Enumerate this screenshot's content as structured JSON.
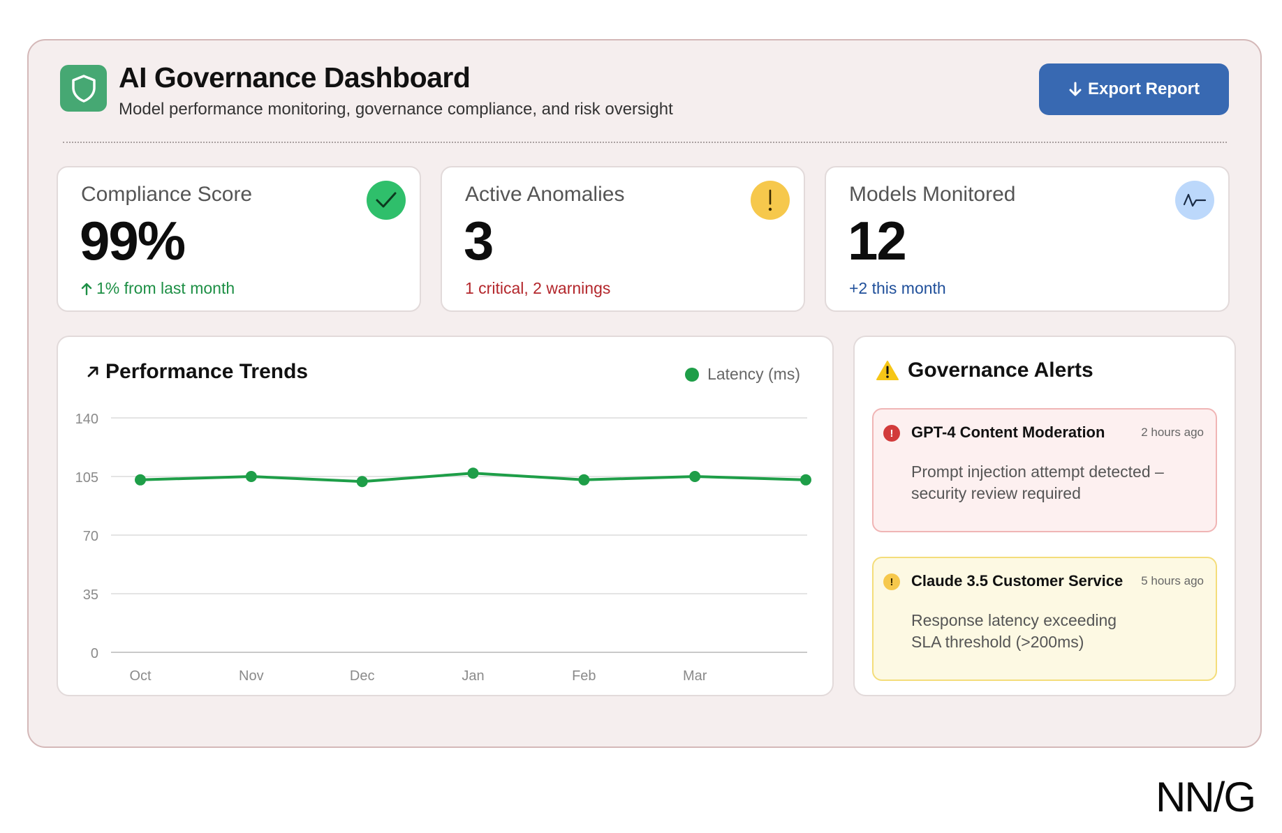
{
  "header": {
    "title": "AI Governance Dashboard",
    "subtitle": "Model performance monitoring, governance compliance, and risk oversight",
    "logo_icon": "shield-icon",
    "export_label": "Export Report",
    "export_icon": "arrow-down-icon"
  },
  "stats": [
    {
      "label": "Compliance Score",
      "value": "99%",
      "note": "1% from last month",
      "note_icon": "arrow-up-icon",
      "note_color": "#1d8f45",
      "icon": "check-icon",
      "icon_bg": "#2fbf6b"
    },
    {
      "label": "Active Anomalies",
      "value": "3",
      "note": "1 critical, 2 warnings",
      "note_color": "#b3262b",
      "icon": "exclamation-icon",
      "icon_bg": "#f6c84c"
    },
    {
      "label": "Models Monitored",
      "value": "12",
      "note": "+2 this month",
      "note_color": "#1f4f9a",
      "icon": "activity-icon",
      "icon_bg": "#bcd8fb"
    }
  ],
  "performance": {
    "title": "Performance Trends",
    "title_icon": "arrow-up-right-icon",
    "legend_label": "Latency (ms)"
  },
  "chart_data": {
    "type": "line",
    "title": "Performance Trends",
    "categories": [
      "Oct",
      "Nov",
      "Dec",
      "Jan",
      "Feb",
      "Mar",
      ""
    ],
    "series": [
      {
        "name": "Latency (ms)",
        "values": [
          103,
          105,
          102,
          107,
          103,
          105,
          103
        ],
        "color": "#1e9e48"
      }
    ],
    "yticks": [
      0,
      35,
      70,
      105,
      140
    ],
    "ylim": [
      0,
      140
    ],
    "grid": true,
    "legend": "top-right"
  },
  "alerts_panel": {
    "title": "Governance Alerts",
    "title_icon": "warning-triangle-icon",
    "items": [
      {
        "title": "GPT-4 Content Moderation",
        "time": "2 hours ago",
        "message": "Prompt injection attempt detected – security review required",
        "severity": "critical",
        "bg": "#fdf0f0",
        "border": "#f0b5b5",
        "icon_bg": "#d23b3b",
        "icon": "error-icon"
      },
      {
        "title": "Claude 3.5 Customer Service",
        "time": "5 hours ago",
        "message": "Response latency exceeding SLA threshold (>200ms)",
        "severity": "warning",
        "bg": "#fdf9e3",
        "border": "#f4dd7a",
        "icon_bg": "#f6c84c",
        "icon": "exclamation-icon"
      }
    ]
  },
  "brand": "NN/G"
}
